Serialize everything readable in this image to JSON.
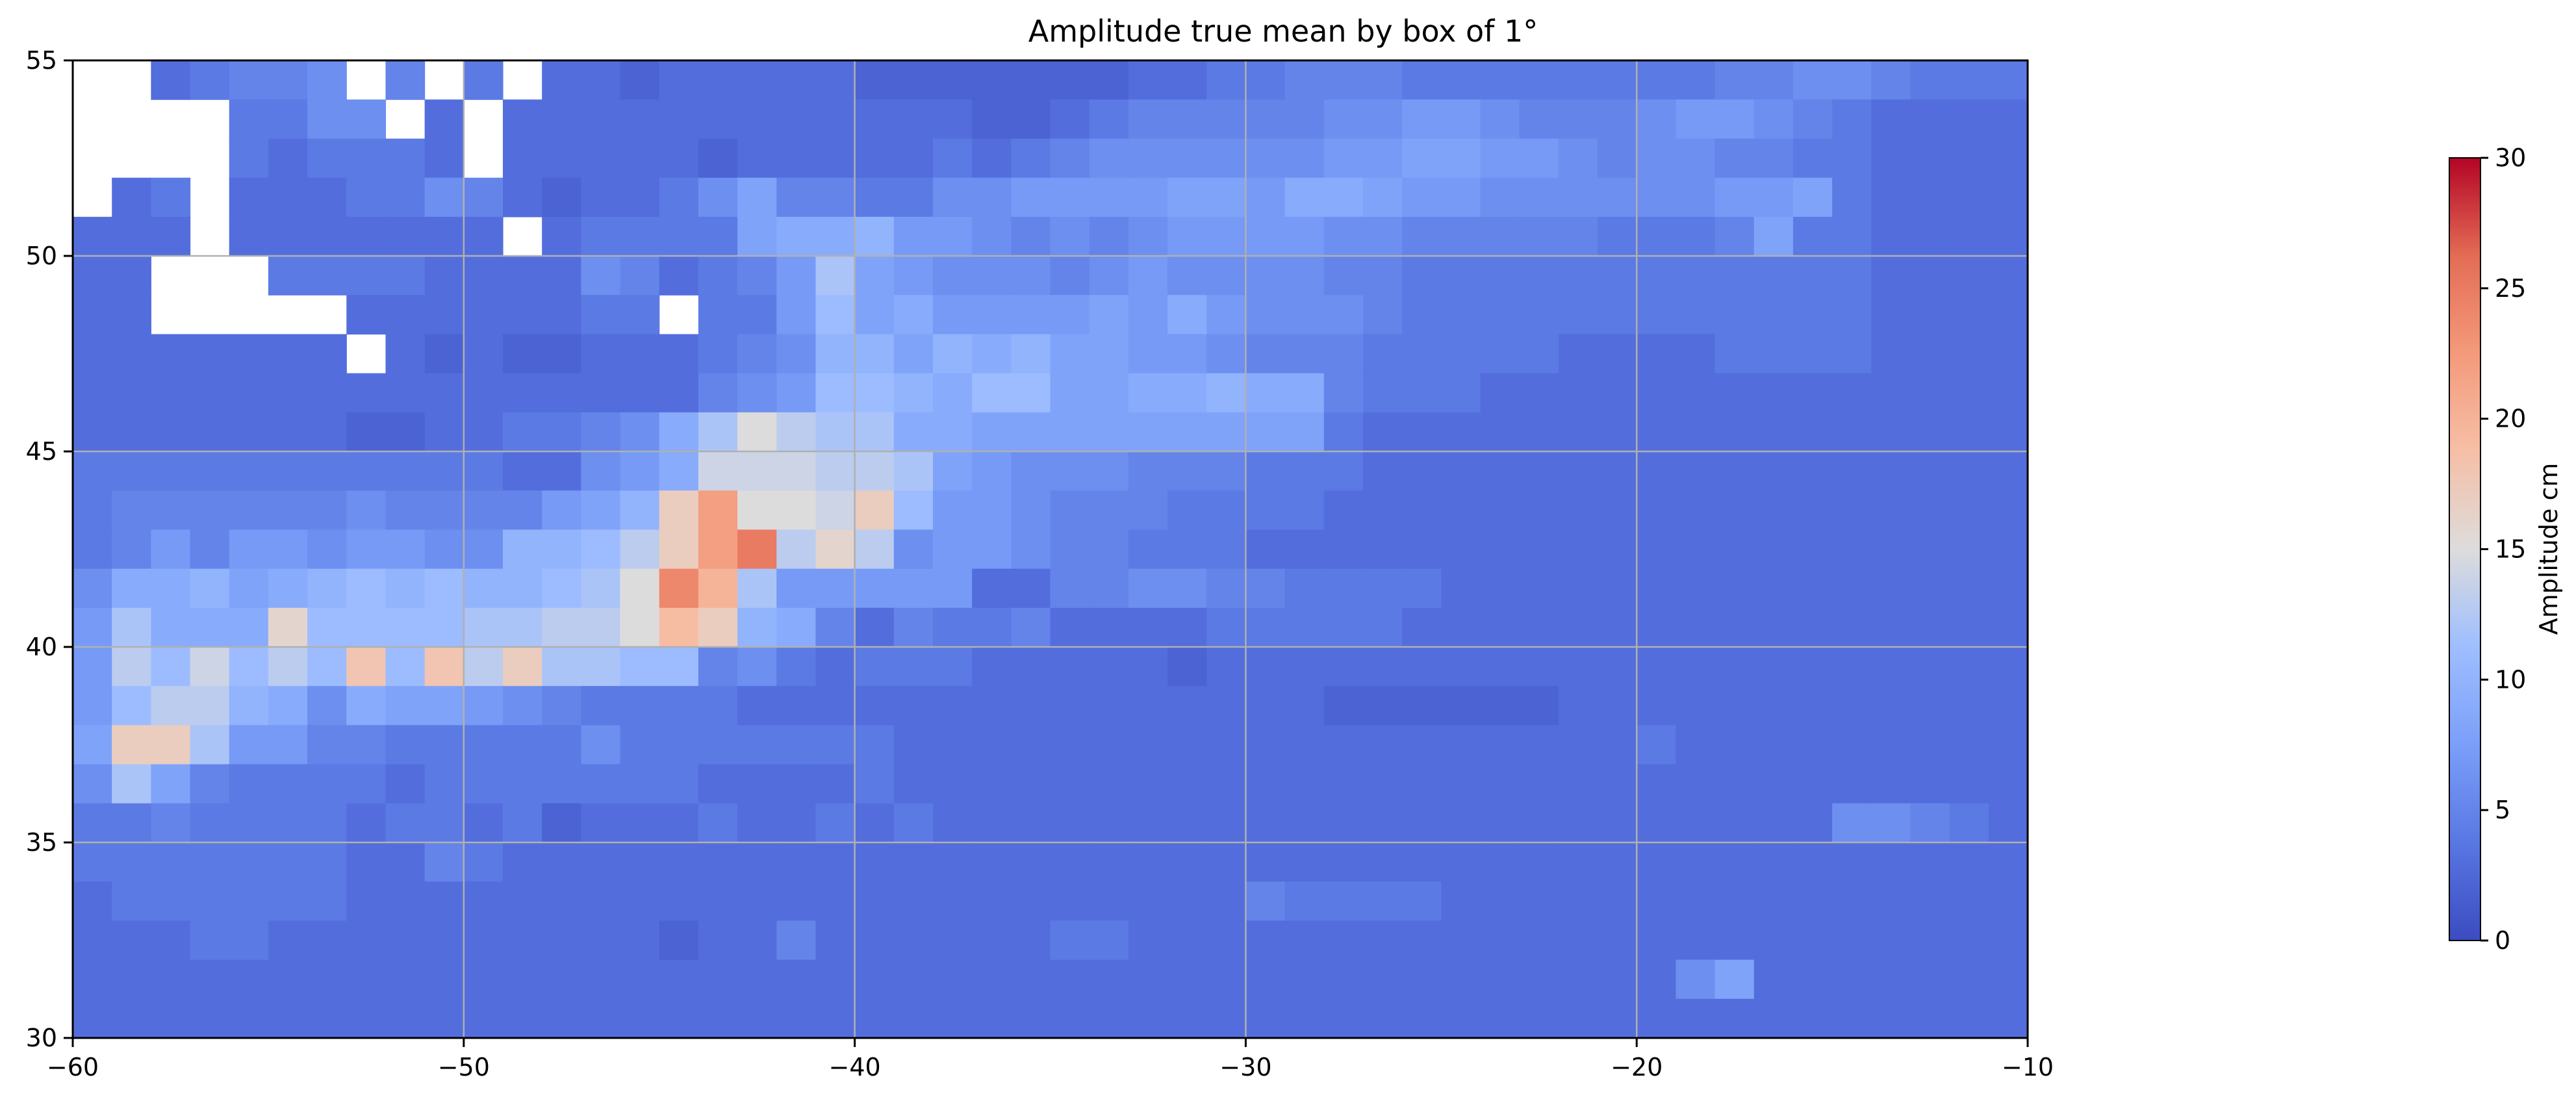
{
  "chart_data": {
    "type": "heatmap",
    "title": "Amplitude true mean by box of 1°",
    "xlim": [
      -60,
      -10
    ],
    "ylim": [
      30,
      55
    ],
    "xticks": [
      -60,
      -50,
      -40,
      -30,
      -20,
      -10
    ],
    "yticks": [
      30,
      35,
      40,
      45,
      50,
      55
    ],
    "xtick_labels": [
      "−60",
      "−50",
      "−40",
      "−30",
      "−20",
      "−10"
    ],
    "ytick_labels": [
      "30",
      "35",
      "40",
      "45",
      "50",
      "55"
    ],
    "grid": true,
    "cell_size_deg": 1,
    "colormap": "coolwarm",
    "colorbar": {
      "label": "Amplitude cm",
      "min": 0,
      "max": 30,
      "ticks": [
        0,
        5,
        10,
        15,
        20,
        25,
        30
      ],
      "tick_labels": [
        "0",
        "5",
        "10",
        "15",
        "20",
        "25",
        "30"
      ]
    },
    "rows_lat_start": [
      54,
      53,
      52,
      51,
      50,
      49,
      48,
      47,
      46,
      45,
      44,
      43,
      42,
      41,
      40,
      39,
      38,
      37,
      36,
      35,
      34,
      33,
      32,
      31,
      30
    ],
    "values": [
      [
        -1,
        -1,
        3,
        4,
        5,
        5,
        6,
        -1,
        5,
        -1,
        4,
        -1,
        3,
        3,
        2,
        3,
        3,
        3,
        3,
        3,
        2,
        2,
        2,
        2,
        2,
        2,
        2,
        3,
        3,
        4,
        4,
        5,
        5,
        5,
        4,
        4,
        4,
        4,
        4,
        4,
        4,
        4,
        5,
        5,
        6,
        6,
        5,
        4,
        4,
        4
      ],
      [
        -1,
        -1,
        -1,
        -1,
        4,
        4,
        6,
        6,
        -1,
        3,
        -1,
        3,
        3,
        3,
        3,
        3,
        3,
        3,
        3,
        3,
        3,
        3,
        3,
        2,
        2,
        3,
        4,
        5,
        5,
        5,
        5,
        5,
        6,
        6,
        7,
        7,
        6,
        5,
        5,
        5,
        6,
        7,
        7,
        6,
        5,
        4,
        3,
        3,
        3,
        3
      ],
      [
        -1,
        -1,
        -1,
        -1,
        4,
        3,
        4,
        4,
        4,
        3,
        -1,
        3,
        3,
        3,
        3,
        3,
        2,
        3,
        3,
        3,
        3,
        3,
        4,
        3,
        4,
        5,
        6,
        6,
        6,
        6,
        6,
        6,
        7,
        7,
        8,
        8,
        7,
        7,
        6,
        5,
        6,
        6,
        5,
        5,
        4,
        4,
        3,
        3,
        3,
        3
      ],
      [
        -1,
        3,
        4,
        -1,
        3,
        3,
        3,
        4,
        4,
        6,
        5,
        3,
        2,
        3,
        3,
        4,
        6,
        8,
        5,
        5,
        4,
        4,
        6,
        6,
        7,
        7,
        7,
        7,
        8,
        8,
        7,
        9,
        9,
        8,
        7,
        7,
        6,
        6,
        6,
        6,
        6,
        6,
        7,
        7,
        8,
        4,
        3,
        3,
        3,
        3
      ],
      [
        3,
        3,
        3,
        -1,
        3,
        3,
        3,
        3,
        3,
        3,
        3,
        -1,
        3,
        4,
        4,
        4,
        4,
        8,
        9,
        9,
        10,
        7,
        7,
        6,
        5,
        6,
        5,
        6,
        7,
        7,
        7,
        7,
        6,
        6,
        5,
        5,
        5,
        5,
        5,
        4,
        4,
        4,
        5,
        8,
        4,
        4,
        3,
        3,
        3,
        3
      ],
      [
        3,
        3,
        -1,
        -1,
        -1,
        4,
        4,
        4,
        4,
        3,
        3,
        3,
        3,
        6,
        5,
        3,
        4,
        5,
        7,
        12,
        8,
        7,
        6,
        6,
        6,
        5,
        6,
        7,
        6,
        6,
        6,
        6,
        5,
        5,
        4,
        4,
        4,
        4,
        4,
        4,
        4,
        4,
        4,
        4,
        4,
        4,
        3,
        3,
        3,
        3
      ],
      [
        3,
        3,
        -1,
        -1,
        -1,
        -1,
        -1,
        3,
        3,
        3,
        3,
        3,
        3,
        4,
        4,
        -1,
        4,
        4,
        7,
        11,
        8,
        9,
        7,
        7,
        7,
        7,
        8,
        7,
        9,
        7,
        6,
        6,
        6,
        5,
        4,
        4,
        4,
        4,
        4,
        4,
        4,
        4,
        4,
        4,
        4,
        4,
        3,
        3,
        3,
        3
      ],
      [
        3,
        3,
        3,
        3,
        3,
        3,
        3,
        -1,
        3,
        2,
        3,
        2,
        2,
        3,
        3,
        3,
        4,
        5,
        6,
        10,
        10,
        8,
        10,
        9,
        10,
        8,
        8,
        7,
        7,
        6,
        5,
        5,
        5,
        4,
        4,
        4,
        4,
        4,
        3,
        3,
        3,
        3,
        4,
        4,
        4,
        4,
        3,
        3,
        3,
        3
      ],
      [
        3,
        3,
        3,
        3,
        3,
        3,
        3,
        3,
        3,
        3,
        3,
        3,
        3,
        3,
        3,
        3,
        5,
        6,
        7,
        11,
        11,
        10,
        9,
        11,
        11,
        8,
        8,
        9,
        9,
        10,
        9,
        9,
        5,
        4,
        4,
        4,
        3,
        3,
        3,
        3,
        3,
        3,
        3,
        3,
        3,
        3,
        3,
        3,
        3,
        3
      ],
      [
        3,
        3,
        3,
        3,
        3,
        3,
        3,
        2,
        2,
        3,
        3,
        4,
        4,
        5,
        6,
        9,
        12,
        15,
        13,
        12,
        12,
        9,
        9,
        8,
        8,
        8,
        8,
        8,
        8,
        8,
        8,
        8,
        4,
        3,
        3,
        3,
        3,
        3,
        3,
        3,
        3,
        3,
        3,
        3,
        3,
        3,
        3,
        3,
        3,
        3
      ],
      [
        4,
        4,
        4,
        4,
        4,
        4,
        4,
        4,
        4,
        4,
        4,
        3,
        3,
        6,
        7,
        9,
        14,
        14,
        14,
        13,
        13,
        12,
        8,
        7,
        6,
        6,
        6,
        5,
        5,
        5,
        4,
        4,
        4,
        3,
        3,
        3,
        3,
        3,
        3,
        3,
        3,
        3,
        3,
        3,
        3,
        3,
        3,
        3,
        3,
        3
      ],
      [
        4,
        5,
        5,
        5,
        5,
        5,
        5,
        6,
        5,
        5,
        5,
        5,
        7,
        8,
        10,
        17,
        22,
        15,
        15,
        14,
        17,
        11,
        7,
        7,
        6,
        5,
        5,
        5,
        4,
        4,
        4,
        4,
        3,
        3,
        3,
        3,
        3,
        3,
        3,
        3,
        3,
        3,
        3,
        3,
        3,
        3,
        3,
        3,
        3,
        3
      ],
      [
        4,
        5,
        7,
        5,
        7,
        7,
        6,
        7,
        7,
        6,
        6,
        10,
        10,
        11,
        13,
        17,
        22,
        25,
        13,
        16,
        13,
        6,
        7,
        7,
        6,
        5,
        5,
        4,
        4,
        4,
        3,
        3,
        3,
        3,
        3,
        3,
        3,
        3,
        3,
        3,
        3,
        3,
        3,
        3,
        3,
        3,
        3,
        3,
        3,
        3
      ],
      [
        6,
        9,
        9,
        10,
        8,
        9,
        10,
        11,
        10,
        11,
        10,
        10,
        11,
        12,
        15,
        24,
        20,
        12,
        7,
        7,
        7,
        7,
        7,
        3,
        3,
        5,
        5,
        6,
        6,
        5,
        5,
        4,
        4,
        4,
        4,
        3,
        3,
        3,
        3,
        3,
        3,
        3,
        3,
        3,
        3,
        3,
        3,
        3,
        3,
        3
      ],
      [
        7,
        12,
        9,
        9,
        9,
        16,
        11,
        11,
        11,
        11,
        12,
        12,
        13,
        13,
        15,
        19,
        17,
        10,
        9,
        5,
        3,
        5,
        4,
        4,
        5,
        3,
        3,
        3,
        3,
        4,
        4,
        4,
        4,
        4,
        3,
        3,
        3,
        3,
        3,
        3,
        3,
        3,
        3,
        3,
        3,
        3,
        3,
        3,
        3,
        3
      ],
      [
        7,
        13,
        11,
        14,
        11,
        13,
        11,
        18,
        11,
        18,
        13,
        17,
        12,
        12,
        11,
        11,
        5,
        6,
        4,
        3,
        4,
        4,
        4,
        3,
        3,
        3,
        3,
        3,
        2,
        3,
        3,
        3,
        3,
        3,
        3,
        3,
        3,
        3,
        3,
        3,
        3,
        3,
        3,
        3,
        3,
        3,
        3,
        3,
        3,
        3
      ],
      [
        7,
        11,
        13,
        13,
        10,
        9,
        6,
        9,
        8,
        8,
        7,
        6,
        5,
        4,
        4,
        4,
        4,
        3,
        3,
        3,
        3,
        3,
        3,
        3,
        3,
        3,
        3,
        3,
        3,
        3,
        3,
        3,
        2,
        2,
        2,
        2,
        2,
        2,
        3,
        3,
        3,
        3,
        3,
        3,
        3,
        3,
        3,
        3,
        3,
        3
      ],
      [
        8,
        17,
        17,
        12,
        7,
        7,
        5,
        5,
        4,
        4,
        4,
        4,
        4,
        6,
        4,
        4,
        4,
        4,
        4,
        4,
        4,
        3,
        3,
        3,
        3,
        3,
        3,
        3,
        3,
        3,
        3,
        3,
        3,
        3,
        3,
        3,
        3,
        3,
        3,
        3,
        4,
        3,
        3,
        3,
        3,
        3,
        3,
        3,
        3,
        3
      ],
      [
        6,
        12,
        8,
        5,
        4,
        4,
        4,
        4,
        3,
        4,
        4,
        4,
        4,
        4,
        4,
        4,
        3,
        3,
        3,
        3,
        4,
        3,
        3,
        3,
        3,
        3,
        3,
        3,
        3,
        3,
        3,
        3,
        3,
        3,
        3,
        3,
        3,
        3,
        3,
        3,
        3,
        3,
        3,
        3,
        3,
        3,
        3,
        3,
        3,
        3
      ],
      [
        4,
        4,
        5,
        4,
        4,
        4,
        4,
        3,
        4,
        4,
        3,
        4,
        2,
        3,
        3,
        3,
        4,
        3,
        3,
        4,
        3,
        4,
        3,
        3,
        3,
        3,
        3,
        3,
        3,
        3,
        3,
        3,
        3,
        3,
        3,
        3,
        3,
        3,
        3,
        3,
        3,
        3,
        3,
        3,
        3,
        6,
        6,
        5,
        4,
        3
      ],
      [
        4,
        4,
        4,
        4,
        4,
        4,
        4,
        3,
        3,
        5,
        4,
        3,
        3,
        3,
        3,
        3,
        3,
        3,
        3,
        3,
        3,
        3,
        3,
        3,
        3,
        3,
        3,
        3,
        3,
        3,
        3,
        3,
        3,
        3,
        3,
        3,
        3,
        3,
        3,
        3,
        3,
        3,
        3,
        3,
        3,
        3,
        3,
        3,
        3,
        3
      ],
      [
        3,
        4,
        4,
        4,
        4,
        4,
        4,
        3,
        3,
        3,
        3,
        3,
        3,
        3,
        3,
        3,
        3,
        3,
        3,
        3,
        3,
        3,
        3,
        3,
        3,
        3,
        3,
        3,
        3,
        3,
        5,
        4,
        4,
        4,
        4,
        3,
        3,
        3,
        3,
        3,
        3,
        3,
        3,
        3,
        3,
        3,
        3,
        3,
        3,
        3
      ],
      [
        3,
        3,
        3,
        4,
        4,
        3,
        3,
        3,
        3,
        3,
        3,
        3,
        3,
        3,
        3,
        2,
        3,
        3,
        5,
        3,
        3,
        3,
        3,
        3,
        3,
        4,
        4,
        3,
        3,
        3,
        3,
        3,
        3,
        3,
        3,
        3,
        3,
        3,
        3,
        3,
        3,
        3,
        3,
        3,
        3,
        3,
        3,
        3,
        3,
        3
      ],
      [
        3,
        3,
        3,
        3,
        3,
        3,
        3,
        3,
        3,
        3,
        3,
        3,
        3,
        3,
        3,
        3,
        3,
        3,
        3,
        3,
        3,
        3,
        3,
        3,
        3,
        3,
        3,
        3,
        3,
        3,
        3,
        3,
        3,
        3,
        3,
        3,
        3,
        3,
        3,
        3,
        3,
        6,
        8,
        3,
        3,
        3,
        3,
        3,
        3,
        3
      ],
      [
        3,
        3,
        3,
        3,
        3,
        3,
        3,
        3,
        3,
        3,
        3,
        3,
        3,
        3,
        3,
        3,
        3,
        3,
        3,
        3,
        3,
        3,
        3,
        3,
        3,
        3,
        3,
        3,
        3,
        3,
        3,
        3,
        3,
        3,
        3,
        3,
        3,
        3,
        3,
        3,
        3,
        3,
        3,
        3,
        3,
        3,
        3,
        3,
        3,
        3
      ]
    ]
  }
}
